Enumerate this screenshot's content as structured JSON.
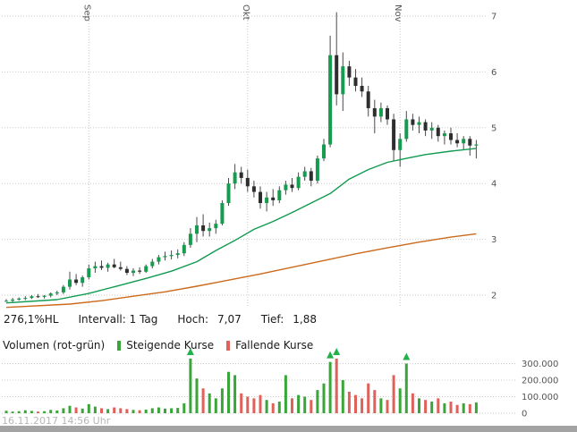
{
  "chart_data": {
    "type": "candlestick",
    "title": "",
    "legend_position": "below-price-pane",
    "grid": true,
    "x_axis": {
      "months": [
        {
          "label": "Sep",
          "index": 13
        },
        {
          "label": "Okt",
          "index": 38
        },
        {
          "label": "Nov",
          "index": 62
        }
      ]
    },
    "y_axis": {
      "ticks": [
        2,
        3,
        4,
        5,
        6,
        7
      ],
      "max": 7,
      "side": "right"
    },
    "volume_axis": {
      "labels": [
        "0",
        "100.000",
        "200.000",
        "300.000"
      ],
      "values": [
        0,
        100000,
        200000,
        300000
      ]
    },
    "high": "7,07",
    "low": "1,88",
    "candles": [
      [
        1.9,
        1.93,
        1.88,
        1.9
      ],
      [
        1.9,
        1.95,
        1.88,
        1.92
      ],
      [
        1.92,
        1.96,
        1.9,
        1.94
      ],
      [
        1.94,
        1.98,
        1.91,
        1.95
      ],
      [
        1.95,
        2.0,
        1.93,
        1.98
      ],
      [
        1.98,
        2.02,
        1.95,
        1.97
      ],
      [
        1.97,
        2.0,
        1.94,
        1.99
      ],
      [
        1.99,
        2.05,
        1.96,
        2.03
      ],
      [
        2.03,
        2.08,
        2.0,
        2.05
      ],
      [
        2.05,
        2.18,
        2.02,
        2.15
      ],
      [
        2.15,
        2.42,
        2.1,
        2.28
      ],
      [
        2.28,
        2.38,
        2.18,
        2.22
      ],
      [
        2.22,
        2.35,
        2.15,
        2.32
      ],
      [
        2.32,
        2.55,
        2.28,
        2.48
      ],
      [
        2.48,
        2.6,
        2.4,
        2.52
      ],
      [
        2.52,
        2.62,
        2.45,
        2.49
      ],
      [
        2.49,
        2.58,
        2.42,
        2.55
      ],
      [
        2.55,
        2.65,
        2.48,
        2.5
      ],
      [
        2.5,
        2.6,
        2.44,
        2.47
      ],
      [
        2.47,
        2.52,
        2.36,
        2.4
      ],
      [
        2.4,
        2.48,
        2.34,
        2.44
      ],
      [
        2.44,
        2.5,
        2.38,
        2.42
      ],
      [
        2.42,
        2.55,
        2.4,
        2.52
      ],
      [
        2.52,
        2.65,
        2.48,
        2.6
      ],
      [
        2.6,
        2.72,
        2.55,
        2.68
      ],
      [
        2.68,
        2.78,
        2.62,
        2.7
      ],
      [
        2.7,
        2.8,
        2.64,
        2.72
      ],
      [
        2.72,
        2.82,
        2.66,
        2.75
      ],
      [
        2.75,
        2.95,
        2.7,
        2.9
      ],
      [
        2.9,
        3.2,
        2.85,
        3.1
      ],
      [
        3.1,
        3.4,
        2.95,
        3.25
      ],
      [
        3.25,
        3.45,
        3.05,
        3.15
      ],
      [
        3.15,
        3.3,
        3.05,
        3.2
      ],
      [
        3.2,
        3.35,
        3.1,
        3.28
      ],
      [
        3.28,
        3.7,
        3.25,
        3.65
      ],
      [
        3.65,
        4.1,
        3.6,
        4.0
      ],
      [
        4.0,
        4.35,
        3.9,
        4.2
      ],
      [
        4.2,
        4.3,
        4.0,
        4.1
      ],
      [
        4.1,
        4.25,
        3.85,
        3.95
      ],
      [
        3.95,
        4.05,
        3.75,
        3.85
      ],
      [
        3.85,
        3.95,
        3.55,
        3.65
      ],
      [
        3.65,
        3.85,
        3.5,
        3.75
      ],
      [
        3.75,
        3.9,
        3.6,
        3.7
      ],
      [
        3.7,
        3.95,
        3.65,
        3.88
      ],
      [
        3.88,
        4.05,
        3.8,
        3.98
      ],
      [
        3.98,
        4.1,
        3.85,
        3.92
      ],
      [
        3.92,
        4.2,
        3.88,
        4.12
      ],
      [
        4.12,
        4.3,
        4.05,
        4.22
      ],
      [
        4.22,
        4.28,
        3.95,
        4.05
      ],
      [
        4.05,
        4.5,
        4.0,
        4.45
      ],
      [
        4.45,
        4.8,
        4.4,
        4.7
      ],
      [
        4.7,
        6.65,
        4.65,
        6.3
      ],
      [
        6.3,
        7.07,
        5.4,
        5.6
      ],
      [
        5.6,
        6.35,
        5.3,
        6.1
      ],
      [
        6.1,
        6.2,
        5.75,
        5.9
      ],
      [
        5.9,
        6.05,
        5.65,
        5.75
      ],
      [
        5.75,
        5.9,
        5.55,
        5.65
      ],
      [
        5.65,
        5.75,
        5.2,
        5.35
      ],
      [
        5.35,
        5.5,
        4.9,
        5.2
      ],
      [
        5.2,
        5.45,
        5.1,
        5.35
      ],
      [
        5.35,
        5.4,
        5.05,
        5.15
      ],
      [
        5.15,
        5.25,
        4.4,
        4.6
      ],
      [
        4.6,
        4.9,
        4.3,
        4.8
      ],
      [
        4.8,
        5.3,
        4.75,
        5.15
      ],
      [
        5.15,
        5.25,
        4.95,
        5.05
      ],
      [
        5.05,
        5.2,
        4.9,
        5.1
      ],
      [
        5.1,
        5.15,
        4.85,
        4.95
      ],
      [
        4.95,
        5.1,
        4.8,
        5.0
      ],
      [
        5.0,
        5.05,
        4.75,
        4.85
      ],
      [
        4.85,
        4.95,
        4.7,
        4.9
      ],
      [
        4.9,
        5.0,
        4.7,
        4.78
      ],
      [
        4.78,
        4.9,
        4.65,
        4.72
      ],
      [
        4.72,
        4.85,
        4.6,
        4.8
      ],
      [
        4.8,
        4.85,
        4.5,
        4.68
      ],
      [
        4.68,
        4.78,
        4.45,
        4.7
      ]
    ],
    "volumes": [
      15000,
      10000,
      12000,
      18000,
      14000,
      10000,
      12000,
      20000,
      16000,
      30000,
      45000,
      35000,
      28000,
      55000,
      40000,
      30000,
      25000,
      35000,
      30000,
      25000,
      20000,
      18000,
      22000,
      30000,
      35000,
      28000,
      30000,
      32000,
      60000,
      330000,
      210000,
      150000,
      120000,
      90000,
      150000,
      250000,
      230000,
      120000,
      100000,
      90000,
      110000,
      80000,
      60000,
      70000,
      230000,
      90000,
      110000,
      100000,
      80000,
      140000,
      180000,
      310000,
      330000,
      200000,
      130000,
      110000,
      90000,
      180000,
      140000,
      90000,
      80000,
      230000,
      150000,
      300000,
      120000,
      90000,
      80000,
      70000,
      90000,
      60000,
      70000,
      50000,
      60000,
      55000,
      65000
    ],
    "arrows": [
      29,
      51,
      52,
      63
    ],
    "ma_fast": {
      "color": "#0f9b50",
      "anchors": [
        [
          0,
          1.86
        ],
        [
          8,
          1.92
        ],
        [
          13,
          2.03
        ],
        [
          18,
          2.18
        ],
        [
          22,
          2.3
        ],
        [
          26,
          2.43
        ],
        [
          30,
          2.6
        ],
        [
          33,
          2.8
        ],
        [
          36,
          2.98
        ],
        [
          39,
          3.18
        ],
        [
          42,
          3.32
        ],
        [
          45,
          3.48
        ],
        [
          48,
          3.65
        ],
        [
          51,
          3.82
        ],
        [
          54,
          4.08
        ],
        [
          57,
          4.25
        ],
        [
          60,
          4.38
        ],
        [
          63,
          4.45
        ],
        [
          66,
          4.52
        ],
        [
          70,
          4.58
        ],
        [
          74,
          4.63
        ]
      ]
    },
    "ma_slow": {
      "color": "#cc6a1b",
      "anchors": [
        [
          0,
          1.78
        ],
        [
          10,
          1.84
        ],
        [
          15,
          1.9
        ],
        [
          20,
          1.98
        ],
        [
          25,
          2.06
        ],
        [
          30,
          2.16
        ],
        [
          35,
          2.27
        ],
        [
          40,
          2.38
        ],
        [
          45,
          2.5
        ],
        [
          50,
          2.62
        ],
        [
          55,
          2.74
        ],
        [
          60,
          2.85
        ],
        [
          65,
          2.95
        ],
        [
          70,
          3.04
        ],
        [
          74,
          3.1
        ]
      ]
    },
    "colors": {
      "up": "#169b4f",
      "down": "#2e2e2e",
      "wick": "#4a4a4a",
      "vol_up": "#3aa63a",
      "vol_down": "#e0605a",
      "arrow": "#21b14b",
      "grid": "#c9c9c9",
      "axis_text": "#555555"
    }
  },
  "stats": {
    "range": "276,1%HL",
    "interval": "Intervall: 1 Tag",
    "high_label": "Hoch:",
    "high_value": "7,07",
    "low_label": "Tief:",
    "low_value": "1,88"
  },
  "legend": {
    "volume": "Volumen (rot-grün)",
    "rising": "Steigende Kurse",
    "falling": "Fallende Kurse"
  },
  "footer": {
    "timestamp": "16.11.2017 14:56 Uhr"
  }
}
